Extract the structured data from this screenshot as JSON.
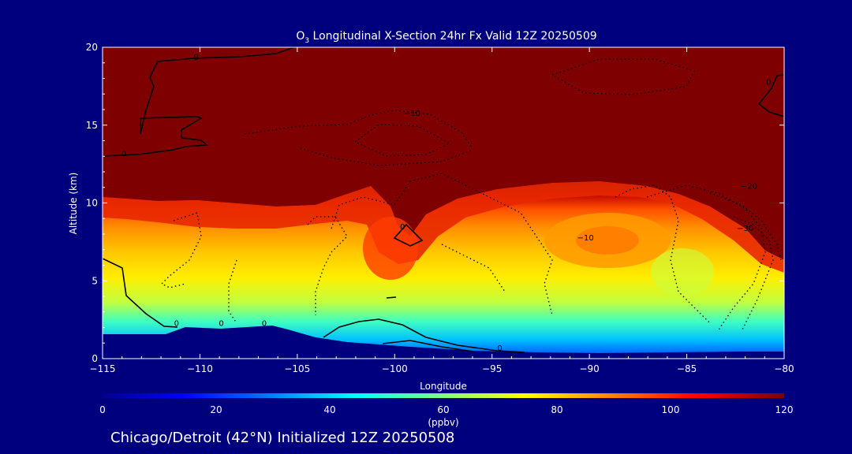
{
  "chart_data": {
    "type": "heatmap",
    "title_parts": [
      "O",
      "3",
      " Longitudinal X-Section 24hr  Fx Valid 12Z 20250509"
    ],
    "title": "O3 Longitudinal X-Section 24hr  Fx Valid 12Z 20250509",
    "xlabel": "Longitude",
    "ylabel": "Altitude (km)",
    "xlim": [
      -115,
      -80
    ],
    "ylim": [
      0,
      20
    ],
    "x_ticks": [
      -115,
      -110,
      -105,
      -100,
      -95,
      -90,
      -85,
      -80
    ],
    "x_tick_labels": [
      "−115",
      "−110",
      "−105",
      "−100",
      "−95",
      "−90",
      "−85",
      "−80"
    ],
    "y_ticks": [
      0,
      5,
      10,
      15,
      20
    ],
    "y_tick_labels": [
      "0",
      "5",
      "10",
      "15",
      "20"
    ],
    "colorbar": {
      "label": "(ppbv)",
      "min": 0,
      "max": 120,
      "ticks": [
        0,
        20,
        40,
        60,
        80,
        100,
        120
      ],
      "tick_labels": [
        "0",
        "20",
        "40",
        "60",
        "80",
        "100",
        "120"
      ]
    },
    "contour_labels": [
      {
        "text": "0",
        "lon": -110.2,
        "alt": 19.2
      },
      {
        "text": "0",
        "lon": -113.9,
        "alt": 13.0
      },
      {
        "text": "0",
        "lon": -80.8,
        "alt": 17.6
      },
      {
        "text": "−10",
        "lon": -99.1,
        "alt": 15.6
      },
      {
        "text": "−20",
        "lon": -81.8,
        "alt": 10.9
      },
      {
        "text": "−10",
        "lon": -90.2,
        "alt": 7.6
      },
      {
        "text": "−30",
        "lon": -82.0,
        "alt": 8.2
      },
      {
        "text": "0",
        "lon": -99.6,
        "alt": 8.3
      },
      {
        "text": "0",
        "lon": -111.2,
        "alt": 2.1
      },
      {
        "text": "0",
        "lon": -108.9,
        "alt": 2.1
      },
      {
        "text": "0",
        "lon": -106.7,
        "alt": 2.1
      },
      {
        "text": "0",
        "lon": -94.6,
        "alt": 0.5
      }
    ],
    "colors": {
      "background": "#00007f",
      "stratosphere": "#7f0000",
      "terrain": "#00007f"
    }
  },
  "footer": {
    "caption": "Chicago/Detroit (42°N) Initialized 12Z 20250508"
  }
}
